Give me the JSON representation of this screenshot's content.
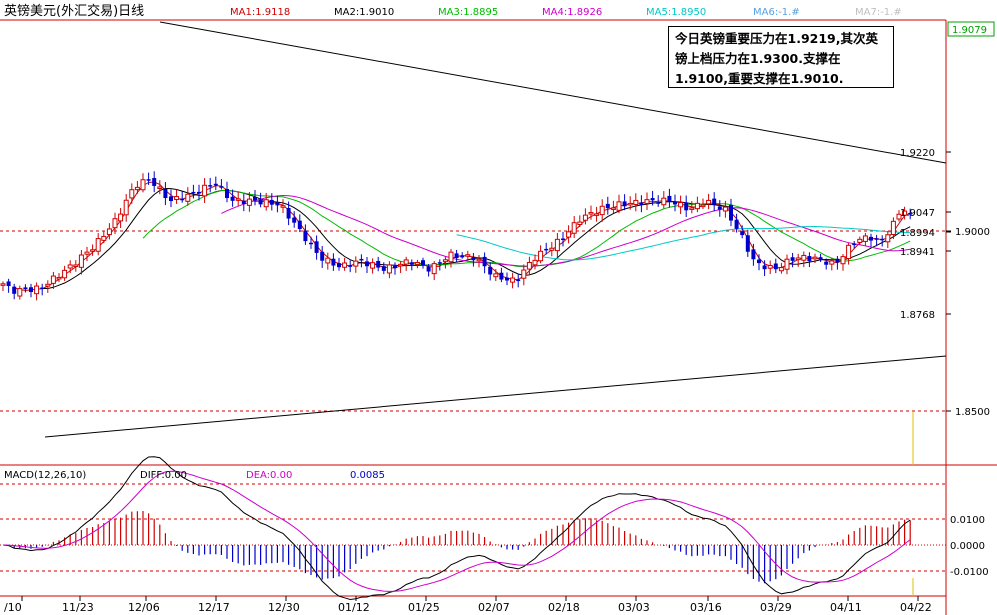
{
  "header": {
    "title": "英镑美元(外汇交易)日线",
    "ma_labels": [
      {
        "text": "MA1:1.9118",
        "color": "#d00000"
      },
      {
        "text": "MA2:1.9010",
        "color": "#000000"
      },
      {
        "text": "MA3:1.8895",
        "color": "#00bb00"
      },
      {
        "text": "MA4:1.8926",
        "color": "#cc00cc"
      },
      {
        "text": "MA5:1.8950",
        "color": "#00c8c8"
      },
      {
        "text": "MA6:-1.#",
        "color": "#5aa0e0"
      },
      {
        "text": "MA7:-1.#",
        "color": "#c0c0c0"
      }
    ]
  },
  "annotation": {
    "text": "今日英镑重要压力在1.9219,其次英镑上档压力在1.9300.支撑在1.9100,重要支撑在1.9010."
  },
  "price_axis": {
    "current_value": "1.9079",
    "labels": [
      "1.9220",
      "1.9047",
      "1.9000",
      "1.8994",
      "1.8941",
      "1.8768",
      "1.8500"
    ]
  },
  "macd_panel": {
    "title": "MACD(12,26,10)",
    "diff_label": "DIFF:0.00",
    "dea_label": "DEA:0.00",
    "value_label": "0.0085",
    "axis_labels": [
      "0.0100",
      "0.0000",
      "-0.0100"
    ]
  },
  "date_axis": {
    "labels": [
      "/10",
      "11/23",
      "12/06",
      "12/17",
      "12/30",
      "01/12",
      "01/25",
      "02/07",
      "02/18",
      "03/03",
      "03/16",
      "03/29",
      "04/11",
      "04/22"
    ]
  },
  "colors": {
    "up": "#d00000",
    "down": "#0000cc",
    "grid_red": "#d00000",
    "accent_green": "#00a000"
  },
  "chart_data": {
    "type": "candlestick",
    "instrument": "英镑美元(外汇交易)日线",
    "price_levels_marked": [
      1.922,
      1.9047,
      1.9,
      1.8994,
      1.8941,
      1.8768,
      1.85
    ],
    "last_price": 1.9079,
    "moving_averages": [
      {
        "name": "MA1",
        "value": 1.9118
      },
      {
        "name": "MA2",
        "value": 1.901
      },
      {
        "name": "MA3",
        "value": 1.8895
      },
      {
        "name": "MA4",
        "value": 1.8926
      },
      {
        "name": "MA5",
        "value": 1.895
      }
    ],
    "macd": {
      "params": "12,26,10",
      "diff": 0.0,
      "dea": 0.0,
      "macd": 0.0085,
      "ylim": [
        -0.015,
        0.025
      ]
    },
    "x_ticks": [
      "/10",
      "11/23",
      "12/06",
      "12/17",
      "12/30",
      "01/12",
      "01/25",
      "02/07",
      "02/18",
      "03/03",
      "03/16",
      "03/29",
      "04/11",
      "04/22"
    ]
  }
}
